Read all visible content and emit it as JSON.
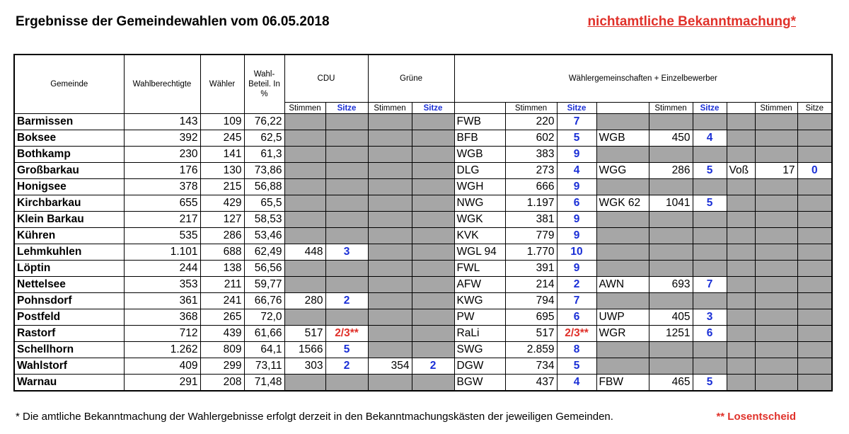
{
  "header": {
    "title": "Ergebnisse der Gemeindewahlen vom 06.05.2018",
    "notice": "nichtamtliche Bekanntmachung*"
  },
  "table": {
    "col_headers": {
      "gemeinde": "Gemeinde",
      "wahlberechtigte": "Wahlberechtigte",
      "waehler": "Wähler",
      "beteiligung": "Wahl-Beteil. In %",
      "cdu": "CDU",
      "gruene": "Grüne",
      "wg": "Wählergemeinschaften + Einzelbewerber"
    },
    "sub_headers": {
      "stimmen": "Stimmen",
      "sitze": "Sitze"
    },
    "rows": [
      {
        "name": "Barmissen",
        "wb": "143",
        "w": "109",
        "p": "76,22",
        "cdu_s": "",
        "cdu_z": "",
        "gr_s": "",
        "gr_z": "",
        "a_n": "FWB",
        "a_s": "220",
        "a_z": "7",
        "b_n": "",
        "b_s": "",
        "b_z": "",
        "c_n": "",
        "c_s": "",
        "c_z": ""
      },
      {
        "name": "Boksee",
        "wb": "392",
        "w": "245",
        "p": "62,5",
        "cdu_s": "",
        "cdu_z": "",
        "gr_s": "",
        "gr_z": "",
        "a_n": "BFB",
        "a_s": "602",
        "a_z": "5",
        "b_n": "WGB",
        "b_s": "450",
        "b_z": "4",
        "c_n": "",
        "c_s": "",
        "c_z": ""
      },
      {
        "name": "Bothkamp",
        "wb": "230",
        "w": "141",
        "p": "61,3",
        "cdu_s": "",
        "cdu_z": "",
        "gr_s": "",
        "gr_z": "",
        "a_n": "WGB",
        "a_s": "383",
        "a_z": "9",
        "b_n": "",
        "b_s": "",
        "b_z": "",
        "c_n": "",
        "c_s": "",
        "c_z": ""
      },
      {
        "name": "Großbarkau",
        "wb": "176",
        "w": "130",
        "p": "73,86",
        "cdu_s": "",
        "cdu_z": "",
        "gr_s": "",
        "gr_z": "",
        "a_n": "DLG",
        "a_s": "273",
        "a_z": "4",
        "b_n": "WGG",
        "b_s": "286",
        "b_z": "5",
        "c_n": "Voß",
        "c_s": "17",
        "c_z": "0"
      },
      {
        "name": "Honigsee",
        "wb": "378",
        "w": "215",
        "p": "56,88",
        "cdu_s": "",
        "cdu_z": "",
        "gr_s": "",
        "gr_z": "",
        "a_n": "WGH",
        "a_s": "666",
        "a_z": "9",
        "b_n": "",
        "b_s": "",
        "b_z": "",
        "c_n": "",
        "c_s": "",
        "c_z": ""
      },
      {
        "name": "Kirchbarkau",
        "wb": "655",
        "w": "429",
        "p": "65,5",
        "cdu_s": "",
        "cdu_z": "",
        "gr_s": "",
        "gr_z": "",
        "a_n": "NWG",
        "a_s": "1.197",
        "a_z": "6",
        "b_n": "WGK 62",
        "b_s": "1041",
        "b_z": "5",
        "c_n": "",
        "c_s": "",
        "c_z": ""
      },
      {
        "name": "Klein Barkau",
        "wb": "217",
        "w": "127",
        "p": "58,53",
        "cdu_s": "",
        "cdu_z": "",
        "gr_s": "",
        "gr_z": "",
        "a_n": "WGK",
        "a_s": "381",
        "a_z": "9",
        "b_n": "",
        "b_s": "",
        "b_z": "",
        "c_n": "",
        "c_s": "",
        "c_z": ""
      },
      {
        "name": "Kühren",
        "wb": "535",
        "w": "286",
        "p": "53,46",
        "cdu_s": "",
        "cdu_z": "",
        "gr_s": "",
        "gr_z": "",
        "a_n": "KVK",
        "a_s": "779",
        "a_z": "9",
        "b_n": "",
        "b_s": "",
        "b_z": "",
        "c_n": "",
        "c_s": "",
        "c_z": ""
      },
      {
        "name": "Lehmkuhlen",
        "wb": "1.101",
        "w": "688",
        "p": "62,49",
        "cdu_s": "448",
        "cdu_z": "3",
        "gr_s": "",
        "gr_z": "",
        "a_n": "WGL 94",
        "a_s": "1.770",
        "a_z": "10",
        "b_n": "",
        "b_s": "",
        "b_z": "",
        "c_n": "",
        "c_s": "",
        "c_z": ""
      },
      {
        "name": "Löptin",
        "wb": "244",
        "w": "138",
        "p": "56,56",
        "cdu_s": "",
        "cdu_z": "",
        "gr_s": "",
        "gr_z": "",
        "a_n": "FWL",
        "a_s": "391",
        "a_z": "9",
        "b_n": "",
        "b_s": "",
        "b_z": "",
        "c_n": "",
        "c_s": "",
        "c_z": ""
      },
      {
        "name": "Nettelsee",
        "wb": "353",
        "w": "211",
        "p": "59,77",
        "cdu_s": "",
        "cdu_z": "",
        "gr_s": "",
        "gr_z": "",
        "a_n": "AFW",
        "a_s": "214",
        "a_z": "2",
        "b_n": "AWN",
        "b_s": "693",
        "b_z": "7",
        "c_n": "",
        "c_s": "",
        "c_z": ""
      },
      {
        "name": "Pohnsdorf",
        "wb": "361",
        "w": "241",
        "p": "66,76",
        "cdu_s": "280",
        "cdu_z": "2",
        "gr_s": "",
        "gr_z": "",
        "a_n": "KWG",
        "a_s": "794",
        "a_z": "7",
        "b_n": "",
        "b_s": "",
        "b_z": "",
        "c_n": "",
        "c_s": "",
        "c_z": ""
      },
      {
        "name": "Postfeld",
        "wb": "368",
        "w": "265",
        "p": "72,0",
        "cdu_s": "",
        "cdu_z": "",
        "gr_s": "",
        "gr_z": "",
        "a_n": "PW",
        "a_s": "695",
        "a_z": "6",
        "b_n": "UWP",
        "b_s": "405",
        "b_z": "3",
        "c_n": "",
        "c_s": "",
        "c_z": ""
      },
      {
        "name": "Rastorf",
        "wb": "712",
        "w": "439",
        "p": "61,66",
        "cdu_s": "517",
        "cdu_z": "2/3**",
        "gr_s": "",
        "gr_z": "",
        "a_n": "RaLi",
        "a_s": "517",
        "a_z": "2/3**",
        "b_n": "WGR",
        "b_s": "1251",
        "b_z": "6",
        "c_n": "",
        "c_s": "",
        "c_z": ""
      },
      {
        "name": "Schellhorn",
        "wb": "1.262",
        "w": "809",
        "p": "64,1",
        "cdu_s": "1566",
        "cdu_z": "5",
        "gr_s": "",
        "gr_z": "",
        "a_n": "SWG",
        "a_s": "2.859",
        "a_z": "8",
        "b_n": "",
        "b_s": "",
        "b_z": "",
        "c_n": "",
        "c_s": "",
        "c_z": ""
      },
      {
        "name": "Wahlstorf",
        "wb": "409",
        "w": "299",
        "p": "73,11",
        "cdu_s": "303",
        "cdu_z": "2",
        "gr_s": "354",
        "gr_z": "2",
        "a_n": "DGW",
        "a_s": "734",
        "a_z": "5",
        "b_n": "",
        "b_s": "",
        "b_z": "",
        "c_n": "",
        "c_s": "",
        "c_z": ""
      },
      {
        "name": "Warnau",
        "wb": "291",
        "w": "208",
        "p": "71,48",
        "cdu_s": "",
        "cdu_z": "",
        "gr_s": "",
        "gr_z": "",
        "a_n": "BGW",
        "a_s": "437",
        "a_z": "4",
        "b_n": "FBW",
        "b_s": "465",
        "b_z": "5",
        "c_n": "",
        "c_s": "",
        "c_z": ""
      }
    ]
  },
  "footer": {
    "footnote": "* Die amtliche Bekanntmachung der Wahlergebnisse erfolgt derzeit in den Bekanntmachungskästen der jeweiligen Gemeinden.",
    "losentscheid": "** Losentscheid"
  },
  "colors": {
    "accent_red": "#e0312a",
    "seats_blue": "#1a2fd6",
    "empty_cell_gray": "#a6a6a6"
  }
}
